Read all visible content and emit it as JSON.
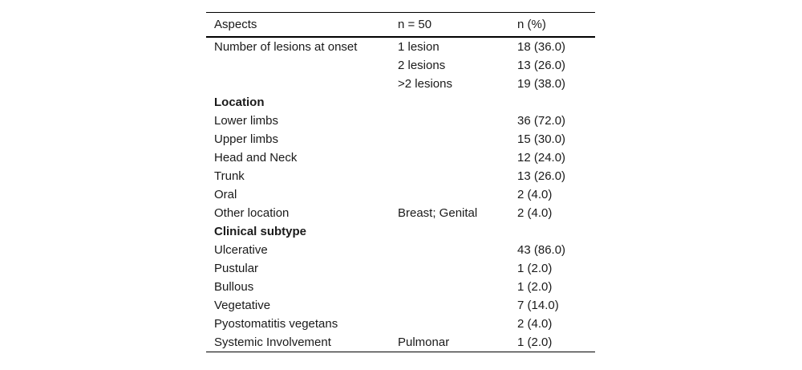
{
  "colors": {
    "background": "#ffffff",
    "text": "#1a1a1a",
    "rule": "#000000"
  },
  "table": {
    "columns": [
      "Aspects",
      "n = 50",
      "n (%)"
    ],
    "rows": [
      {
        "aspect": "Number of lesions at onset",
        "detail": "1 lesion",
        "value": "18 (36.0)",
        "bold": false
      },
      {
        "aspect": "",
        "detail": "2 lesions",
        "value": "13 (26.0)",
        "bold": false
      },
      {
        "aspect": "",
        "detail": ">2 lesions",
        "value": "19 (38.0)",
        "bold": false
      },
      {
        "aspect": "Location",
        "detail": "",
        "value": "",
        "bold": true
      },
      {
        "aspect": "Lower limbs",
        "detail": "",
        "value": "36 (72.0)",
        "bold": false
      },
      {
        "aspect": "Upper limbs",
        "detail": "",
        "value": "15 (30.0)",
        "bold": false
      },
      {
        "aspect": "Head and Neck",
        "detail": "",
        "value": "12 (24.0)",
        "bold": false
      },
      {
        "aspect": "Trunk",
        "detail": "",
        "value": "13 (26.0)",
        "bold": false
      },
      {
        "aspect": "Oral",
        "detail": "",
        "value": "2 (4.0)",
        "bold": false
      },
      {
        "aspect": "Other location",
        "detail": "Breast; Genital",
        "value": "2 (4.0)",
        "bold": false
      },
      {
        "aspect": "Clinical subtype",
        "detail": "",
        "value": "",
        "bold": true
      },
      {
        "aspect": "Ulcerative",
        "detail": "",
        "value": "43 (86.0)",
        "bold": false
      },
      {
        "aspect": "Pustular",
        "detail": "",
        "value": "1 (2.0)",
        "bold": false
      },
      {
        "aspect": "Bullous",
        "detail": "",
        "value": "1 (2.0)",
        "bold": false
      },
      {
        "aspect": "Vegetative",
        "detail": "",
        "value": "7 (14.0)",
        "bold": false
      },
      {
        "aspect": "Pyostomatitis vegetans",
        "detail": "",
        "value": "2 (4.0)",
        "bold": false
      },
      {
        "aspect": "Systemic Involvement",
        "detail": "Pulmonar",
        "value": "1 (2.0)",
        "bold": false
      }
    ]
  },
  "chart_data": {
    "type": "table",
    "title": "",
    "columns": [
      "Aspects",
      "n = 50",
      "n (%)"
    ],
    "rows": [
      [
        "Number of lesions at onset",
        "1 lesion",
        "18 (36.0)"
      ],
      [
        "",
        "2 lesions",
        "13 (26.0)"
      ],
      [
        "",
        ">2 lesions",
        "19 (38.0)"
      ],
      [
        "Location",
        "",
        ""
      ],
      [
        "Lower limbs",
        "",
        "36 (72.0)"
      ],
      [
        "Upper limbs",
        "",
        "15 (30.0)"
      ],
      [
        "Head and Neck",
        "",
        "12 (24.0)"
      ],
      [
        "Trunk",
        "",
        "13 (26.0)"
      ],
      [
        "Oral",
        "",
        "2 (4.0)"
      ],
      [
        "Other location",
        "Breast; Genital",
        "2 (4.0)"
      ],
      [
        "Clinical subtype",
        "",
        ""
      ],
      [
        "Ulcerative",
        "",
        "43 (86.0)"
      ],
      [
        "Pustular",
        "",
        "1 (2.0)"
      ],
      [
        "Bullous",
        "",
        "1 (2.0)"
      ],
      [
        "Vegetative",
        "",
        "7 (14.0)"
      ],
      [
        "Pyostomatitis vegetans",
        "",
        "2 (4.0)"
      ],
      [
        "Systemic Involvement",
        "Pulmonar",
        "1 (2.0)"
      ]
    ]
  }
}
